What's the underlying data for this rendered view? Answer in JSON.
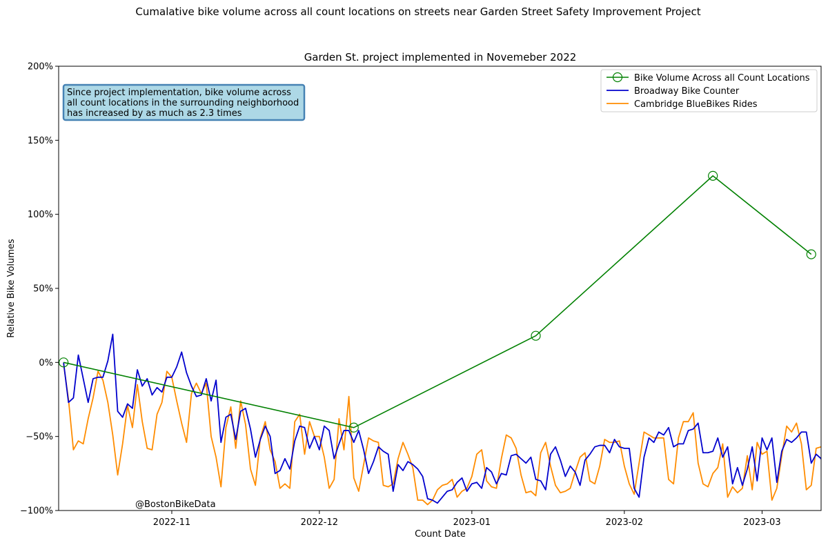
{
  "chart_data": {
    "type": "line",
    "title": "Cumalative bike volume across all count locations on streets near Garden Street Safety Improvement Project",
    "subtitle": "Garden St. project implemented in Novemeber 2022",
    "xlabel": "Count Date",
    "ylabel": "Relative Bike Volumes",
    "xlim": [
      "2022-10-09",
      "2023-03-13"
    ],
    "ylim": [
      -100,
      200
    ],
    "x_ticks": [
      "2022-11-01",
      "2022-12-01",
      "2023-01-01",
      "2023-02-01",
      "2023-03-01"
    ],
    "x_tick_labels": [
      "2022-11",
      "2022-12",
      "2023-01",
      "2023-02",
      "2023-03"
    ],
    "y_ticks": [
      -100,
      -50,
      0,
      50,
      100,
      150,
      200
    ],
    "y_tick_labels": [
      "−100%",
      "−50%",
      "0%",
      "50%",
      "100%",
      "150%",
      "200%"
    ],
    "legend_position": "top-right",
    "annotation": {
      "lines": [
        "Since project implementation, bike volume across",
        "all count locations in the surrounding neighborhood",
        "has increased by as much as 2.3 times"
      ],
      "background": "#add8e6",
      "border": "#4682b4"
    },
    "watermark": "@BostonBikeData",
    "series": [
      {
        "name": "Bike Volume Across all Count Locations",
        "color": "#008000",
        "marker": "open-circle",
        "x": [
          "2022-10-10",
          "2022-12-08",
          "2023-01-14",
          "2023-02-19",
          "2023-03-11"
        ],
        "y": [
          0,
          -44,
          18,
          126,
          73
        ]
      },
      {
        "name": "Broadway Bike Counter",
        "color": "#0000cd",
        "start": "2022-10-10",
        "step_days": 1,
        "y": [
          0,
          -27,
          -24,
          5,
          -11,
          -27,
          -11,
          -10,
          -10,
          1,
          19,
          -33,
          -37,
          -28,
          -31,
          -5,
          -16,
          -11,
          -22,
          -17,
          -20,
          -10,
          -10,
          -3,
          7,
          -7,
          -16,
          -23,
          -22,
          -11,
          -26,
          -12,
          -54,
          -37,
          -35,
          -52,
          -33,
          -31,
          -45,
          -64,
          -52,
          -43,
          -50,
          -75,
          -73,
          -65,
          -72,
          -53,
          -43,
          -44,
          -58,
          -50,
          -59,
          -43,
          -46,
          -65,
          -55,
          -46,
          -46,
          -54,
          -46,
          -59,
          -75,
          -67,
          -57,
          -60,
          -62,
          -87,
          -69,
          -73,
          -67,
          -69,
          -72,
          -77,
          -92,
          -93,
          -95,
          -91,
          -87,
          -86,
          -81,
          -78,
          -87,
          -82,
          -81,
          -85,
          -71,
          -74,
          -82,
          -75,
          -76,
          -63,
          -62,
          -65,
          -68,
          -64,
          -79,
          -80,
          -86,
          -62,
          -57,
          -66,
          -77,
          -70,
          -74,
          -83,
          -66,
          -62,
          -57,
          -56,
          -56,
          -61,
          -52,
          -57,
          -58,
          -58,
          -85,
          -91,
          -64,
          -51,
          -54,
          -47,
          -49,
          -44,
          -57,
          -55,
          -55,
          -46,
          -45,
          -41,
          -61,
          -61,
          -60,
          -51,
          -64,
          -57,
          -82,
          -71,
          -83,
          -72,
          -57,
          -80,
          -51,
          -59,
          -51,
          -81,
          -60,
          -52,
          -54,
          -51,
          -47,
          -47,
          -68,
          -62,
          -65,
          -79
        ]
      },
      {
        "name": "Cambridge BlueBikes Rides",
        "color": "#ff8c00",
        "start": "2022-10-10",
        "step_days": 1,
        "y": [
          -1,
          -25,
          -59,
          -53,
          -55,
          -38,
          -24,
          -6,
          -12,
          -27,
          -49,
          -76,
          -55,
          -29,
          -44,
          -15,
          -40,
          -58,
          -59,
          -35,
          -27,
          -6,
          -10,
          -26,
          -41,
          -54,
          -21,
          -14,
          -21,
          -14,
          -50,
          -64,
          -84,
          -44,
          -30,
          -58,
          -26,
          -42,
          -72,
          -83,
          -51,
          -40,
          -59,
          -67,
          -85,
          -82,
          -85,
          -40,
          -35,
          -62,
          -40,
          -50,
          -50,
          -64,
          -85,
          -79,
          -38,
          -59,
          -23,
          -78,
          -87,
          -69,
          -51,
          -53,
          -54,
          -83,
          -84,
          -82,
          -65,
          -54,
          -62,
          -71,
          -93,
          -93,
          -96,
          -93,
          -86,
          -83,
          -82,
          -79,
          -91,
          -87,
          -85,
          -77,
          -62,
          -59,
          -80,
          -84,
          -85,
          -65,
          -49,
          -51,
          -58,
          -76,
          -88,
          -87,
          -90,
          -61,
          -54,
          -70,
          -83,
          -88,
          -87,
          -85,
          -74,
          -64,
          -61,
          -80,
          -82,
          -70,
          -52,
          -54,
          -54,
          -53,
          -70,
          -82,
          -89,
          -68,
          -47,
          -49,
          -51,
          -51,
          -51,
          -79,
          -82,
          -51,
          -40,
          -40,
          -34,
          -68,
          -82,
          -84,
          -75,
          -71,
          -55,
          -91,
          -84,
          -88,
          -85,
          -63,
          -86,
          -54,
          -62,
          -60,
          -93,
          -85,
          -63,
          -43,
          -47,
          -41,
          -55,
          -86,
          -83,
          -58,
          -57
        ]
      }
    ]
  }
}
